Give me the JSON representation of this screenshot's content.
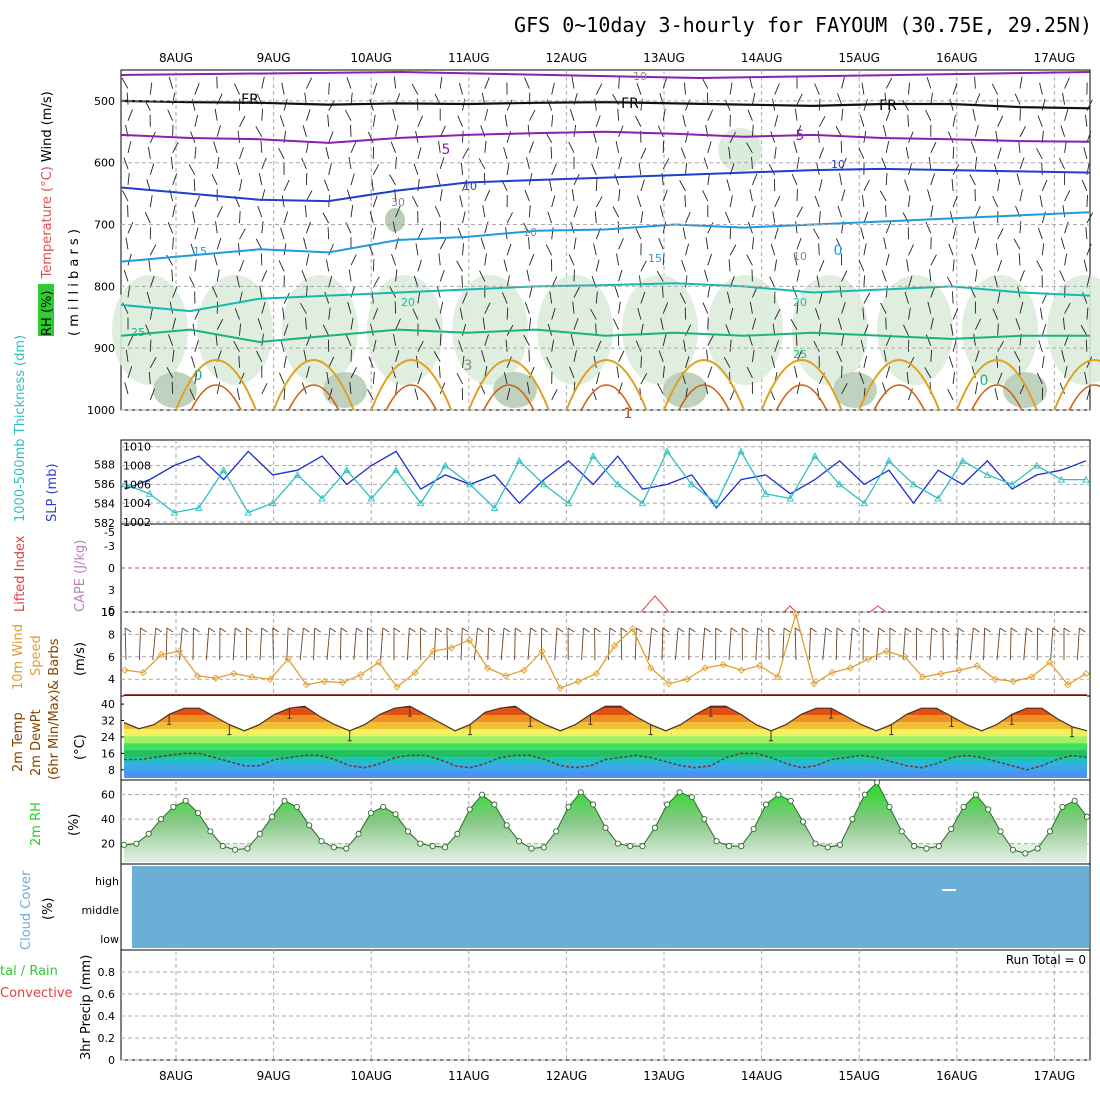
{
  "title": "GFS 0~10day 3-hourly for FAYOUM (30.75E, 29.25N)",
  "dates": [
    "8AUG",
    "9AUG",
    "10AUG",
    "11AUG",
    "12AUG",
    "13AUG",
    "14AUG",
    "15AUG",
    "16AUG",
    "17AUG"
  ],
  "colors": {
    "purple": "#8a1fb0",
    "blue": "#1f3fcc",
    "lightblue": "#1f9ae0",
    "teal": "#18b8b0",
    "green": "#19b380",
    "orange": "#e0a020",
    "darkorange": "#d06010",
    "slp": "#1a2fd0",
    "thick": "#30c0c0",
    "wind": "#e0a030",
    "rh": "#2ecc2e",
    "cloud": "#6baed6",
    "rhfill": "#ddeedd"
  },
  "chart_data": [
    {
      "type": "line",
      "panel": "upper-air",
      "ylabel_parts": {
        "rh": "RH (%)",
        "temp": "Temperature (°C)",
        "wind": "Wind (m/s)",
        "unit": "( m i l l i b a r s )"
      },
      "yticks": [
        500,
        600,
        700,
        800,
        900,
        1000
      ],
      "ylim": [
        450,
        1000
      ],
      "contour_labels": [
        "10",
        "FR",
        "FR",
        "FR",
        "5",
        "5",
        "10",
        "10",
        "30",
        "10",
        "10",
        "15",
        "15",
        "0",
        "20",
        "20",
        "25",
        "25",
        "0",
        "0",
        "3",
        "1"
      ],
      "isotherms": [
        {
          "name": "FR",
          "values": [
            500,
            502,
            503,
            506,
            504,
            505,
            503,
            502,
            504,
            506,
            508,
            505,
            505,
            510,
            512
          ]
        },
        {
          "name": "5",
          "values": [
            555,
            560,
            562,
            568,
            560,
            555,
            552,
            550,
            553,
            558,
            555,
            560,
            562,
            565,
            566
          ]
        },
        {
          "name": "10",
          "values": [
            640,
            650,
            660,
            662,
            645,
            632,
            628,
            624,
            620,
            616,
            612,
            610,
            612,
            614,
            616
          ]
        },
        {
          "name": "15",
          "values": [
            760,
            750,
            740,
            745,
            725,
            720,
            710,
            708,
            700,
            705,
            700,
            695,
            690,
            685,
            680
          ]
        },
        {
          "name": "20",
          "values": [
            830,
            840,
            820,
            815,
            810,
            805,
            800,
            798,
            795,
            800,
            810,
            805,
            800,
            810,
            815
          ]
        },
        {
          "name": "25",
          "values": [
            880,
            870,
            890,
            880,
            870,
            875,
            870,
            880,
            875,
            880,
            875,
            880,
            885,
            880,
            880
          ]
        }
      ]
    },
    {
      "type": "line",
      "panel": "slp-thickness",
      "ylabel_parts": {
        "thick": "1000-500mb Thickness (dm)",
        "slp": "SLP (mb)"
      },
      "left_ticks": [
        582,
        584,
        586,
        588
      ],
      "right_ticks": [
        1002,
        1004,
        1006,
        1008,
        1010
      ],
      "ylim_slp": [
        1002,
        1010.5
      ],
      "series": [
        {
          "values": [
            1005.5,
            1006.5,
            1008,
            1009,
            1006.5,
            1009.5,
            1007,
            1007.5,
            1009,
            1006,
            1008,
            1009.5,
            1005.5,
            1007,
            1006,
            1007,
            1004,
            1006.5,
            1008.5,
            1006,
            1009,
            1005.5,
            1006,
            1007,
            1003.5,
            1006.5,
            1007,
            1005,
            1006.5,
            1008.5,
            1006,
            1007.5,
            1004,
            1007.5,
            1006,
            1008.5,
            1005.5,
            1007,
            1007.5,
            1008.5
          ]
        },
        {
          "values": [
            1006,
            1005,
            1003,
            1003.5,
            1007.5,
            1003,
            1004,
            1007,
            1004.5,
            1007.5,
            1004.5,
            1007.5,
            1004,
            1008,
            1006,
            1003.5,
            1008.5,
            1006,
            1004,
            1009,
            1006,
            1004,
            1009.5,
            1006,
            1004,
            1009.5,
            1005,
            1004.5,
            1009,
            1006,
            1004,
            1008.5,
            1006,
            1004.5,
            1008.5,
            1007,
            1006,
            1008,
            1006.5,
            1006.5
          ]
        }
      ]
    },
    {
      "type": "line",
      "panel": "cape-li",
      "ylabel_parts": {
        "li": "Lifted Index",
        "cape": "CAPE (J/kg)"
      },
      "left_ticks": [
        -5,
        -3,
        0,
        3,
        6
      ],
      "right_ticks": [
        10
      ]
    },
    {
      "type": "line",
      "panel": "wind10",
      "ylabel_parts": {
        "a": "10m Wind",
        "b": "Speed",
        "c": "& Barbs",
        "unit": "(m/s)"
      },
      "yticks": [
        4,
        6,
        8,
        10
      ],
      "ylim": [
        2.5,
        10
      ],
      "series": [
        {
          "values": [
            4.8,
            4.6,
            6.2,
            6.5,
            4.3,
            4.1,
            4.5,
            4.2,
            4.0,
            5.8,
            3.5,
            3.8,
            3.7,
            4.4,
            5.5,
            3.3,
            4.6,
            6.5,
            6.8,
            7.5,
            5.0,
            4.3,
            4.8,
            6.5,
            3.2,
            3.8,
            4.5,
            7.0,
            8.5,
            5.0,
            3.6,
            4.0,
            5.0,
            5.3,
            4.8,
            5.2,
            4.2,
            9.8,
            3.6,
            4.6,
            5.0,
            5.8,
            6.5,
            6.0,
            4.2,
            4.5,
            4.8,
            5.2,
            4.0,
            3.8,
            4.2,
            5.5,
            3.5,
            4.5
          ]
        }
      ]
    },
    {
      "type": "area",
      "panel": "temp2m",
      "ylabel_parts": {
        "a": "2m Temp",
        "b": "2m DewPt",
        "c": "(6hr Min/Max)",
        "unit": "(°C)"
      },
      "yticks": [
        8,
        16,
        24,
        32,
        40
      ],
      "ylim": [
        4,
        42
      ],
      "series": [
        {
          "values": [
            31,
            28,
            30,
            35,
            38,
            38,
            34,
            30,
            27,
            30,
            35,
            38,
            39,
            34,
            30,
            27,
            30,
            35,
            38,
            39,
            35,
            31,
            27,
            30,
            36,
            38,
            39,
            34,
            30,
            27,
            30,
            35,
            39,
            39,
            34,
            30,
            27,
            30,
            35,
            39,
            39,
            35,
            30,
            27,
            30,
            35,
            38,
            38,
            34,
            30,
            27,
            30,
            35,
            38,
            38,
            34,
            30,
            27,
            30,
            35,
            38,
            38,
            33,
            29,
            27
          ]
        },
        {
          "values": [
            13,
            13,
            14,
            15,
            16,
            16,
            14,
            12,
            10,
            10,
            13,
            14,
            15,
            15,
            13,
            10,
            9,
            11,
            14,
            15,
            15,
            13,
            10,
            9,
            11,
            14,
            15,
            15,
            13,
            10,
            9,
            10,
            13,
            14,
            15,
            14,
            12,
            10,
            9,
            10,
            14,
            16,
            16,
            14,
            11,
            9,
            10,
            13,
            14,
            15,
            14,
            12,
            10,
            9,
            11,
            14,
            15,
            14,
            12,
            10,
            8,
            10,
            13,
            15,
            14
          ]
        }
      ]
    },
    {
      "type": "area",
      "panel": "rh2m",
      "ylabel_parts": {
        "a": "2m RH",
        "unit": "(%)"
      },
      "yticks": [
        20,
        40,
        60
      ],
      "ylim": [
        5,
        72
      ],
      "series": [
        {
          "values": [
            19,
            20,
            28,
            40,
            50,
            55,
            45,
            30,
            18,
            15,
            16,
            28,
            42,
            55,
            50,
            35,
            22,
            17,
            16,
            28,
            45,
            50,
            44,
            30,
            20,
            18,
            17,
            28,
            48,
            60,
            52,
            35,
            22,
            16,
            17,
            30,
            50,
            62,
            52,
            33,
            20,
            18,
            18,
            33,
            52,
            62,
            58,
            40,
            22,
            18,
            18,
            32,
            52,
            60,
            55,
            38,
            20,
            17,
            19,
            40,
            60,
            70,
            50,
            30,
            18,
            16,
            18,
            32,
            50,
            60,
            48,
            30,
            15,
            12,
            16,
            30,
            50,
            55,
            42
          ]
        }
      ]
    },
    {
      "type": "heatmap",
      "panel": "cloud",
      "ylabel_parts": {
        "a": "Cloud Cover",
        "unit": "(%)"
      },
      "levels": [
        "high",
        "middle",
        "low"
      ]
    },
    {
      "type": "bar",
      "panel": "precip",
      "ylabel_parts": {
        "a": "tal / Rain",
        "b": "Convective",
        "unit": "3hr Precip (mm)"
      },
      "yticks": [
        "0",
        "0.2",
        "0.4",
        "0.6",
        "0.8"
      ],
      "ylim": [
        0,
        1
      ],
      "run_total": "Run Total = 0"
    }
  ]
}
